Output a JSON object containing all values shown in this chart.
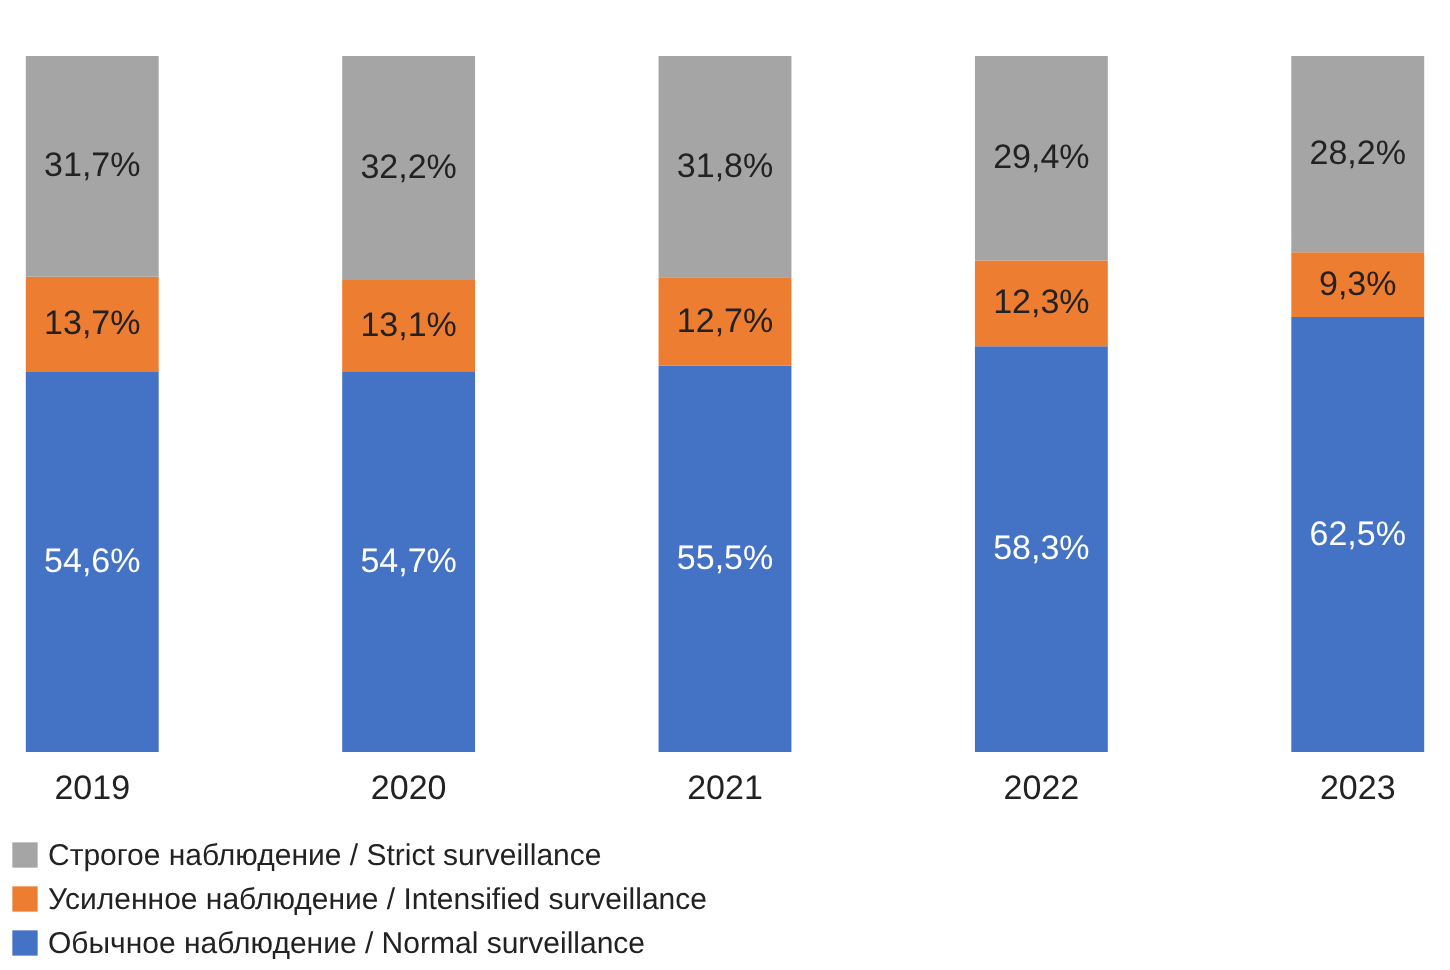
{
  "chart_data": {
    "type": "bar",
    "stacked": true,
    "categories": [
      "2019",
      "2020",
      "2021",
      "2022",
      "2023"
    ],
    "ylim": [
      0,
      100
    ],
    "tick_labels": "x",
    "legend": "bottom",
    "series": [
      {
        "name": "Обычное наблюдение / Normal surveillance",
        "color": "#4472c4",
        "values": [
          54.6,
          54.7,
          55.5,
          58.3,
          62.5
        ],
        "value_labels": [
          "54,6%",
          "54,7%",
          "55,5%",
          "58,3%",
          "62,5%"
        ]
      },
      {
        "name": "Усиленное наблюдение / Intensified surveillance",
        "color": "#ed7d31",
        "values": [
          13.7,
          13.1,
          12.7,
          12.3,
          9.3
        ],
        "value_labels": [
          "13,7%",
          "13,1%",
          "12,7%",
          "12,3%",
          "9,3%"
        ]
      },
      {
        "name": "Строгое наблюдение / Strict surveillance",
        "color": "#a5a5a5",
        "values": [
          31.7,
          32.2,
          31.8,
          29.4,
          28.2
        ],
        "value_labels": [
          "31,7%",
          "32,2%",
          "31,8%",
          "29,4%",
          "28,2%"
        ]
      }
    ]
  }
}
